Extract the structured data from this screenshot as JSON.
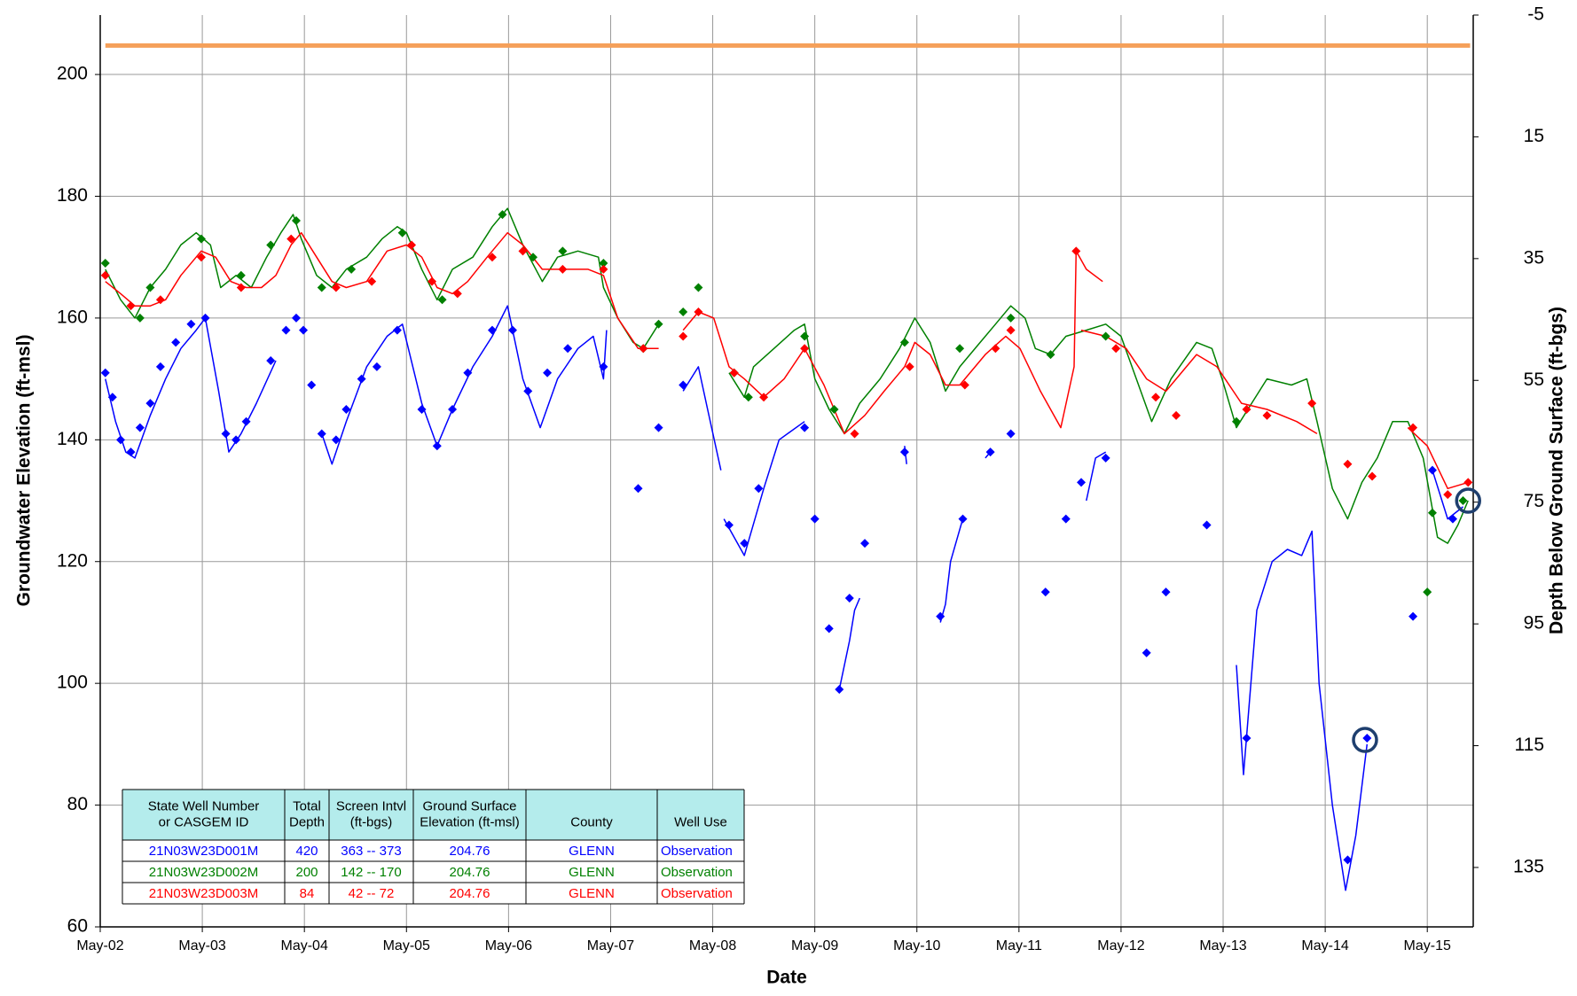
{
  "chart_data": {
    "type": "line",
    "xlabel": "Date",
    "ylabel": "Groundwater Elevation (ft-msl)",
    "y2label": "Depth Below Ground Surface (ft-bgs)",
    "xlim": [
      2002.33,
      2015.78
    ],
    "xticks": [
      {
        "value": 2002.33,
        "label": "May-02"
      },
      {
        "value": 2003.33,
        "label": "May-03"
      },
      {
        "value": 2004.33,
        "label": "May-04"
      },
      {
        "value": 2005.33,
        "label": "May-05"
      },
      {
        "value": 2006.33,
        "label": "May-06"
      },
      {
        "value": 2007.33,
        "label": "May-07"
      },
      {
        "value": 2008.33,
        "label": "May-08"
      },
      {
        "value": 2009.33,
        "label": "May-09"
      },
      {
        "value": 2010.33,
        "label": "May-10"
      },
      {
        "value": 2011.33,
        "label": "May-11"
      },
      {
        "value": 2012.33,
        "label": "May-12"
      },
      {
        "value": 2013.33,
        "label": "May-13"
      },
      {
        "value": 2014.33,
        "label": "May-14"
      },
      {
        "value": 2015.33,
        "label": "May-15"
      }
    ],
    "ylim": [
      60,
      209.76
    ],
    "yticks": [
      60,
      80,
      100,
      120,
      140,
      160,
      180,
      200
    ],
    "y2lim": [
      144.76,
      -5
    ],
    "y2ticks": [
      -5,
      15,
      35,
      55,
      75,
      95,
      115,
      135
    ],
    "grid": true,
    "series": [
      {
        "style": "line",
        "color": "#f5a05a",
        "width": 5,
        "x": [
          2002.38,
          2015.75
        ],
        "values": [
          204.76,
          204.76
        ]
      },
      {
        "style": "line",
        "color": "#0000ff",
        "width": 1.5,
        "x": [
          2002.38,
          2002.48,
          2002.58,
          2002.67,
          2002.82,
          2002.97,
          2003.12,
          2003.27,
          2003.36,
          2003.49,
          2003.59,
          2003.71,
          2003.86,
          2004.05,
          null,
          2004.5,
          2004.6,
          2004.74,
          2004.94,
          2005.14,
          2005.29,
          2005.48,
          2005.63,
          2005.78,
          2005.98,
          2006.17,
          2006.32,
          2006.47,
          2006.64,
          2006.81,
          2007.01,
          2007.16,
          2007.26,
          2007.29,
          null,
          2008.04,
          2008.19,
          2008.28,
          2008.41,
          null,
          2008.44,
          2008.64,
          2008.83,
          2008.98,
          2009.23,
          null,
          2009.57,
          2009.67,
          2009.72,
          2009.77,
          null,
          2010.21,
          2010.23,
          null,
          2010.56,
          2010.61,
          2010.66,
          2010.78,
          null,
          2011.0,
          2011.05,
          null,
          2011.99,
          2012.08,
          2012.18,
          null,
          2013.46,
          2013.53,
          2013.66,
          2013.81,
          2013.96,
          2014.1,
          2014.2,
          2014.27,
          2014.4,
          2014.53,
          2014.63,
          2014.74,
          null,
          2015.38,
          2015.53,
          2015.68
        ],
        "values": [
          150,
          143,
          138,
          137,
          144,
          150,
          155,
          158,
          160,
          148,
          138,
          141,
          146,
          153,
          null,
          141,
          136,
          143,
          152,
          157,
          159,
          146,
          139,
          145,
          152,
          157,
          162,
          150,
          142,
          150,
          155,
          157,
          150,
          158,
          null,
          148,
          152,
          145,
          135,
          null,
          127,
          121,
          132,
          140,
          143,
          null,
          99,
          107,
          112,
          114,
          null,
          139,
          136,
          null,
          110,
          113,
          120,
          127,
          null,
          137,
          138,
          null,
          130,
          137,
          138,
          null,
          103,
          85,
          112,
          120,
          122,
          121,
          125,
          100,
          80,
          66,
          75,
          90,
          null,
          135,
          127,
          129
        ]
      },
      {
        "style": "line",
        "color": "#008000",
        "width": 1.5,
        "x": [
          2002.38,
          2002.53,
          2002.67,
          2002.82,
          2002.97,
          2003.12,
          2003.27,
          2003.41,
          2003.51,
          2003.66,
          2003.81,
          2003.96,
          2004.1,
          2004.22,
          2004.3,
          2004.45,
          2004.6,
          2004.74,
          2004.94,
          2005.09,
          2005.24,
          2005.33,
          2005.48,
          2005.63,
          2005.78,
          2005.98,
          2006.17,
          2006.32,
          2006.47,
          2006.66,
          2006.81,
          2007.01,
          2007.21,
          2007.26,
          2007.4,
          2007.55,
          2007.65,
          2007.8,
          null,
          2008.49,
          2008.64,
          2008.73,
          2008.93,
          2009.13,
          2009.23,
          2009.33,
          2009.47,
          2009.62,
          2009.77,
          2009.97,
          2010.16,
          2010.31,
          2010.46,
          2010.61,
          2010.75,
          2010.95,
          2011.1,
          2011.25,
          2011.39,
          2011.49,
          2011.64,
          2011.79,
          2011.99,
          2012.18,
          2012.33,
          2012.48,
          2012.63,
          2012.82,
          2013.07,
          2013.22,
          2013.32,
          2013.46,
          2013.61,
          2013.76,
          2014.0,
          2014.15,
          2014.25,
          2014.4,
          2014.55,
          2014.69,
          2014.84,
          2014.99,
          2015.14,
          2015.29,
          2015.43,
          2015.53,
          2015.63,
          2015.73
        ],
        "values": [
          168,
          163,
          160,
          165,
          168,
          172,
          174,
          172,
          165,
          167,
          165,
          170,
          174,
          177,
          173,
          167,
          165,
          168,
          170,
          173,
          175,
          174,
          168,
          163,
          168,
          170,
          175,
          178,
          172,
          166,
          170,
          171,
          170,
          165,
          160,
          156,
          155,
          159,
          null,
          151,
          147,
          152,
          155,
          158,
          159,
          150,
          145,
          141,
          146,
          150,
          155,
          160,
          156,
          148,
          152,
          156,
          159,
          162,
          160,
          155,
          154,
          157,
          158,
          159,
          157,
          150,
          143,
          150,
          156,
          155,
          150,
          142,
          146,
          150,
          149,
          150,
          143,
          132,
          127,
          133,
          137,
          143,
          143,
          137,
          124,
          123,
          126,
          130
        ]
      },
      {
        "style": "line",
        "color": "#ff0000",
        "width": 1.5,
        "x": [
          2002.38,
          2002.53,
          2002.67,
          2002.82,
          2002.97,
          2003.12,
          2003.32,
          2003.46,
          2003.61,
          2003.76,
          2003.91,
          2004.05,
          2004.2,
          2004.3,
          2004.45,
          2004.6,
          2004.74,
          2004.94,
          2005.14,
          2005.33,
          2005.48,
          2005.63,
          2005.78,
          2005.93,
          2006.12,
          2006.32,
          2006.47,
          2006.66,
          2006.86,
          2007.11,
          2007.26,
          2007.4,
          2007.6,
          2007.8,
          null,
          2008.04,
          2008.19,
          2008.34,
          2008.49,
          2008.64,
          2008.83,
          2009.03,
          2009.23,
          2009.42,
          2009.62,
          2009.82,
          2010.01,
          2010.21,
          2010.31,
          2010.46,
          2010.61,
          2010.75,
          2011.0,
          2011.2,
          2011.34,
          2011.54,
          2011.74,
          2011.87,
          2011.89,
          2011.99,
          2012.15,
          null,
          2011.94,
          2012.18,
          2012.38,
          2012.58,
          2012.77,
          2013.07,
          2013.27,
          2013.51,
          2013.76,
          2014.05,
          2014.25,
          null,
          2015.14,
          2015.33,
          2015.53,
          2015.73
        ],
        "values": [
          166,
          164,
          162,
          162,
          163,
          167,
          171,
          170,
          166,
          165,
          165,
          167,
          172,
          174,
          170,
          166,
          165,
          166,
          171,
          172,
          170,
          165,
          164,
          166,
          170,
          174,
          172,
          168,
          168,
          168,
          167,
          160,
          155,
          155,
          null,
          158,
          161,
          160,
          152,
          150,
          147,
          150,
          155,
          149,
          141,
          144,
          148,
          152,
          156,
          154,
          149,
          149,
          154,
          157,
          155,
          148,
          142,
          152,
          171,
          168,
          166,
          null,
          158,
          157,
          155,
          150,
          148,
          154,
          152,
          146,
          145,
          143,
          141,
          null,
          142,
          139,
          132,
          133
        ]
      },
      {
        "style": "marker",
        "color": "#0000ff",
        "x": [
          2002.38,
          2002.45,
          2002.53,
          2002.63,
          2002.72,
          2002.82,
          2002.92,
          2003.07,
          2003.22,
          2003.36,
          2003.56,
          2003.66,
          2003.76,
          2004.0,
          2004.15,
          2004.25,
          2004.32,
          2004.4,
          2004.5,
          2004.64,
          2004.74,
          2004.89,
          2005.04,
          2005.24,
          2005.48,
          2005.63,
          2005.78,
          2005.93,
          2006.17,
          2006.37,
          2006.52,
          2006.71,
          2006.91,
          2007.26,
          2007.6,
          2007.8,
          2008.04,
          2008.49,
          2008.64,
          2008.78,
          2009.23,
          2009.33,
          2009.47,
          2009.57,
          2009.67,
          2009.82,
          2010.21,
          2010.56,
          2010.78,
          2011.05,
          2011.25,
          2011.59,
          2011.79,
          2011.94,
          2012.18,
          2012.58,
          2012.77,
          2013.17,
          2013.56,
          2014.55,
          2014.74,
          2015.19,
          2015.38,
          2015.58
        ],
        "values": [
          151,
          147,
          140,
          138,
          142,
          146,
          152,
          156,
          159,
          160,
          141,
          140,
          143,
          153,
          158,
          160,
          158,
          149,
          141,
          140,
          145,
          150,
          152,
          158,
          145,
          139,
          145,
          151,
          158,
          158,
          148,
          151,
          155,
          152,
          132,
          142,
          149,
          126,
          123,
          132,
          142,
          127,
          109,
          99,
          114,
          123,
          138,
          111,
          127,
          138,
          141,
          115,
          127,
          133,
          137,
          105,
          115,
          126,
          91,
          71,
          91,
          111,
          135,
          127
        ]
      },
      {
        "style": "marker",
        "color": "#008000",
        "x": [
          2002.38,
          2002.72,
          2002.82,
          2003.32,
          2003.71,
          2004.0,
          2004.25,
          2004.5,
          2004.79,
          2005.29,
          2005.68,
          2006.27,
          2006.57,
          2006.86,
          2007.26,
          2007.65,
          2007.8,
          2008.04,
          2008.19,
          2008.54,
          2008.68,
          2009.23,
          2009.52,
          2010.21,
          2010.75,
          2011.25,
          2011.64,
          2012.18,
          2013.46,
          2015.33,
          2015.38,
          2015.68
        ],
        "values": [
          169,
          160,
          165,
          173,
          167,
          172,
          176,
          165,
          168,
          174,
          163,
          177,
          170,
          171,
          169,
          155,
          159,
          161,
          165,
          151,
          147,
          157,
          145,
          156,
          155,
          160,
          154,
          157,
          143,
          115,
          128,
          130
        ]
      },
      {
        "style": "marker",
        "color": "#ff0000",
        "x": [
          2002.38,
          2002.63,
          2002.92,
          2003.32,
          2003.71,
          2004.2,
          2004.64,
          2004.99,
          2005.38,
          2005.58,
          2005.83,
          2006.17,
          2006.47,
          2006.86,
          2007.26,
          2007.65,
          2008.04,
          2008.19,
          2008.54,
          2008.83,
          2009.23,
          2009.72,
          2010.26,
          2010.8,
          2011.1,
          2011.25,
          2011.89,
          2012.28,
          2012.67,
          2012.87,
          2013.56,
          2013.76,
          2014.2,
          2014.55,
          2014.79,
          2015.19,
          2015.53,
          2015.73
        ],
        "values": [
          167,
          162,
          163,
          170,
          165,
          173,
          165,
          166,
          172,
          166,
          164,
          170,
          171,
          168,
          168,
          155,
          157,
          161,
          151,
          147,
          155,
          141,
          152,
          149,
          155,
          158,
          171,
          155,
          147,
          144,
          145,
          144,
          146,
          136,
          134,
          142,
          131,
          133
        ]
      }
    ],
    "highlights": {
      "color": "#1f3f6e",
      "x": [
        2015.73,
        2014.72
      ],
      "values": [
        130,
        90.7
      ]
    },
    "table": {
      "header": [
        [
          "State Well Number",
          "or CASGEM ID"
        ],
        [
          "Total",
          "Depth"
        ],
        [
          "Screen Intvl",
          "(ft-bgs)"
        ],
        [
          "Ground Surface",
          "Elevation (ft-msl)"
        ],
        [
          "County"
        ],
        [
          "Well Use"
        ]
      ],
      "header_color": "#b4ecec",
      "rows": [
        {
          "color": "#0000ff",
          "cells": [
            "21N03W23D001M",
            420,
            "363 -- 373",
            204.76,
            "GLENN",
            "Observation"
          ]
        },
        {
          "color": "#008000",
          "cells": [
            "21N03W23D002M",
            200,
            "142 -- 170",
            204.76,
            "GLENN",
            "Observation"
          ]
        },
        {
          "color": "#ff0000",
          "cells": [
            "21N03W23D003M",
            84,
            "42 -- 72",
            204.76,
            "GLENN",
            "Observation"
          ]
        }
      ]
    }
  }
}
